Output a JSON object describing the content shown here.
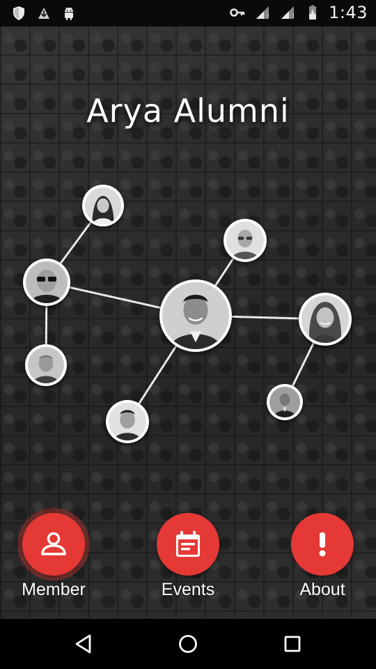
{
  "status_bar": {
    "time": "1:43",
    "left_icons": [
      "shield-icon",
      "download-icon",
      "android-icon"
    ],
    "right_icons": [
      "key-icon",
      "signal-icon",
      "signal-icon",
      "battery-charging-icon"
    ]
  },
  "app": {
    "title": "Arya Alumni"
  },
  "network": {
    "avatars": [
      "alumni-woman-top",
      "alumni-man-glasses",
      "alumni-man-bald",
      "alumni-man-center",
      "alumni-woman-right",
      "alumni-man-left-lower",
      "alumni-man-bottom",
      "alumni-man-small-right"
    ]
  },
  "nav": {
    "member_label": "Member",
    "events_label": "Events",
    "about_label": "About"
  },
  "colors": {
    "accent": "#e53935",
    "status_bar": "#0a0a0a",
    "nav_bar": "#000000"
  }
}
